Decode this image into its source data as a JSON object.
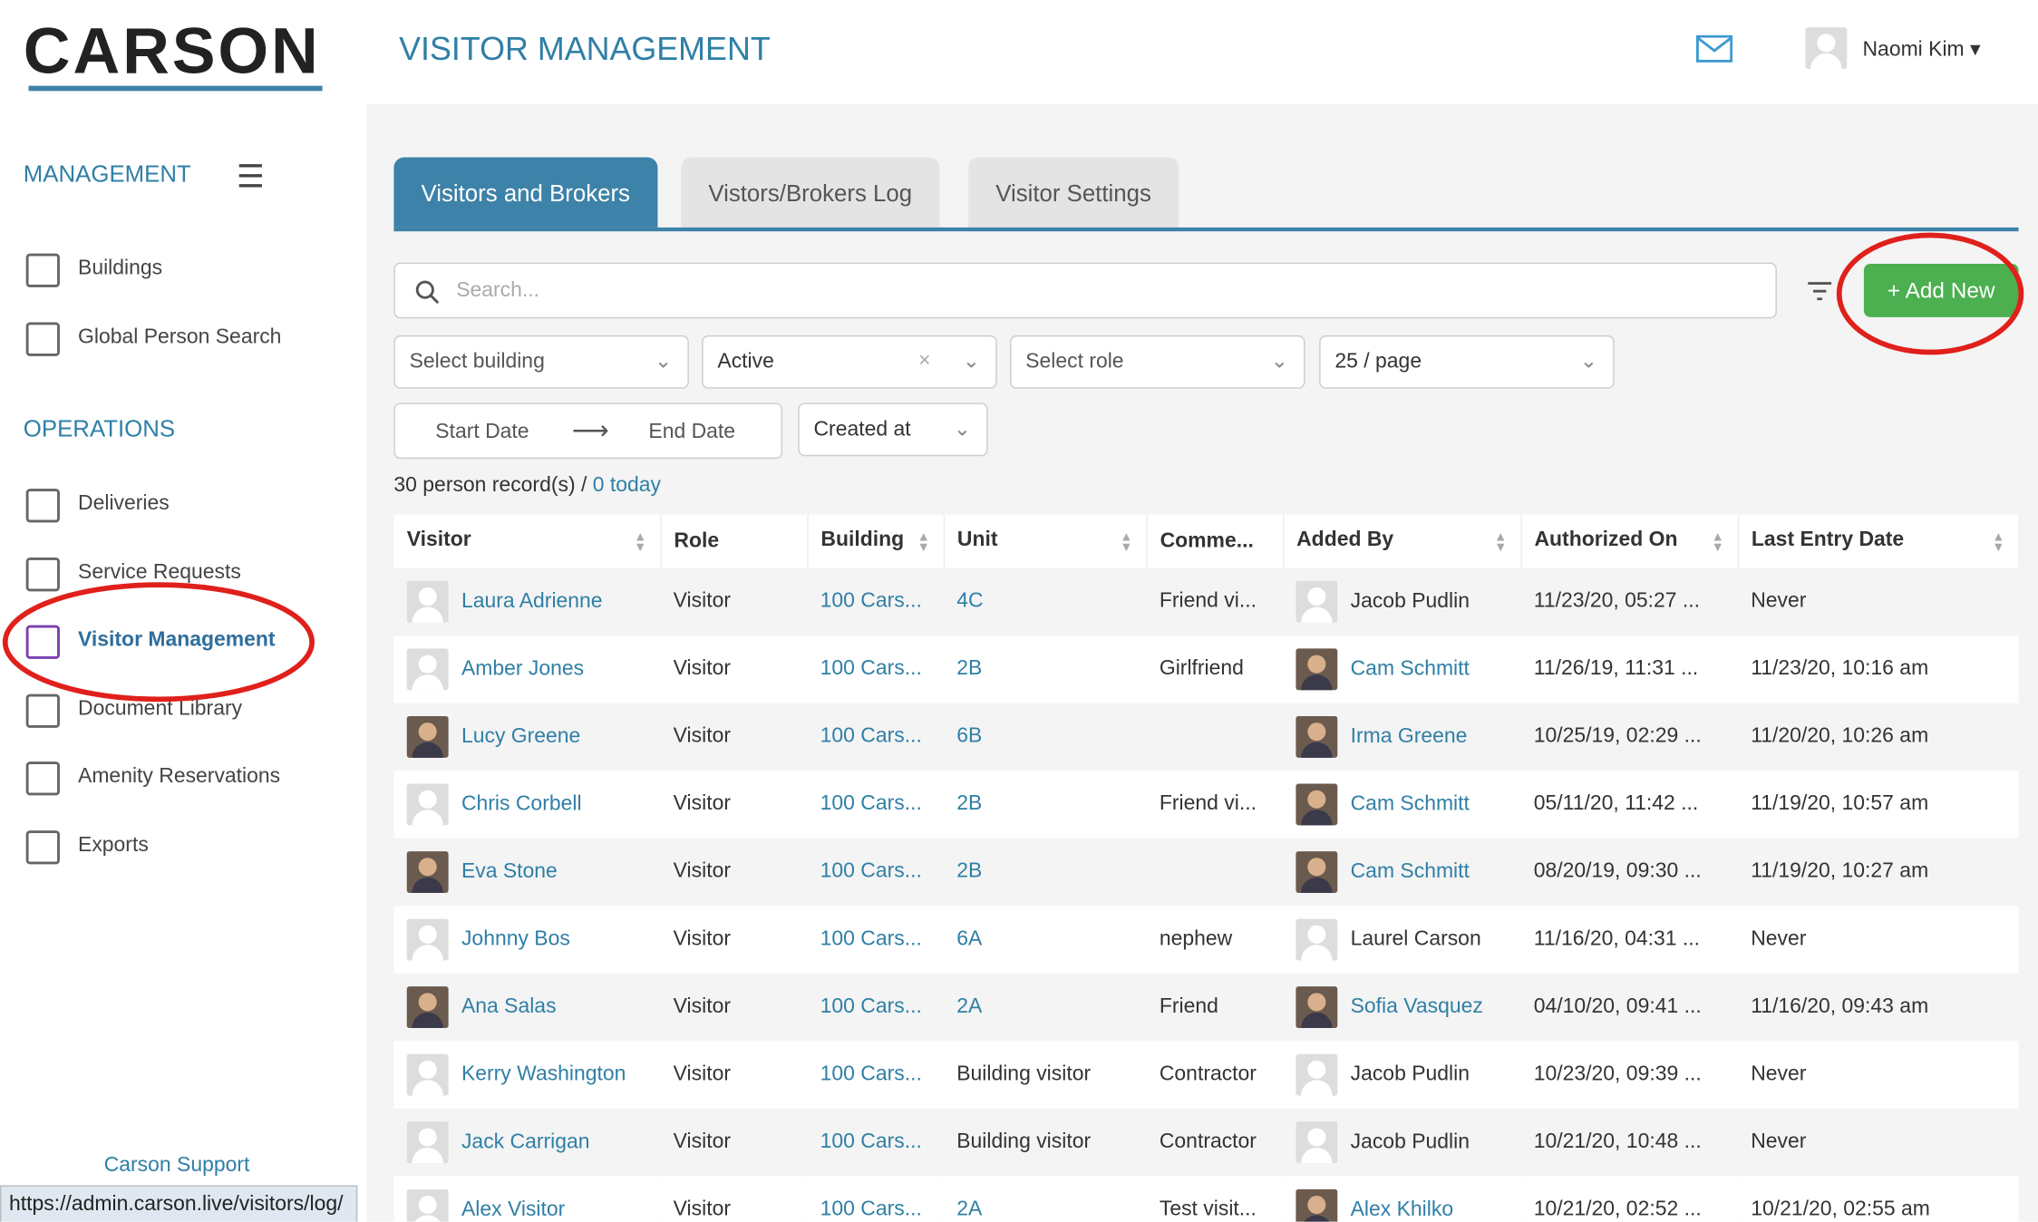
{
  "header": {
    "logo": "CARSON",
    "page_title": "VISITOR MANAGEMENT",
    "user": "Naomi Kim"
  },
  "sidebar": {
    "sections": [
      {
        "title": "MANAGEMENT",
        "items": [
          "Buildings",
          "Global Person Search"
        ]
      },
      {
        "title": "OPERATIONS",
        "items": [
          "Deliveries",
          "Service Requests",
          "Visitor Management",
          "Document Library",
          "Amenity Reservations",
          "Exports"
        ]
      }
    ],
    "active_item": "Visitor Management",
    "support": "Carson Support"
  },
  "status_bar": "https://admin.carson.live/visitors/log/",
  "tabs": [
    "Visitors and Brokers",
    "Vistors/Brokers Log",
    "Visitor Settings"
  ],
  "search_placeholder": "Search...",
  "add_button": "+ Add New",
  "filters": {
    "building": "Select building",
    "status": "Active",
    "role": "Select role",
    "page_size": "25 / page",
    "start_date": "Start Date",
    "end_date": "End Date",
    "sort": "Created at"
  },
  "records": {
    "count": "30 person record(s) /",
    "today": "0 today"
  },
  "table": {
    "columns": [
      "Visitor",
      "Role",
      "Building",
      "Unit",
      "Comme...",
      "Added By",
      "Authorized On",
      "Last Entry Date"
    ],
    "rows": [
      [
        "Laura Adrienne",
        "Visitor",
        "100 Cars...",
        "4C",
        "Friend vi...",
        "Jacob Pudlin",
        "11/23/20, 05:27 ...",
        "Never"
      ],
      [
        "Amber Jones",
        "Visitor",
        "100 Cars...",
        "2B",
        "Girlfriend",
        "Cam Schmitt",
        "11/26/19, 11:31 ...",
        "11/23/20, 10:16 am"
      ],
      [
        "Lucy Greene",
        "Visitor",
        "100 Cars...",
        "6B",
        "",
        "Irma Greene",
        "10/25/19, 02:29 ...",
        "11/20/20, 10:26 am"
      ],
      [
        "Chris Corbell",
        "Visitor",
        "100 Cars...",
        "2B",
        "Friend vi...",
        "Cam Schmitt",
        "05/11/20, 11:42 ...",
        "11/19/20, 10:57 am"
      ],
      [
        "Eva Stone",
        "Visitor",
        "100 Cars...",
        "2B",
        "",
        "Cam Schmitt",
        "08/20/19, 09:30 ...",
        "11/19/20, 10:27 am"
      ],
      [
        "Johnny Bos",
        "Visitor",
        "100 Cars...",
        "6A",
        "nephew",
        "Laurel Carson",
        "11/16/20, 04:31 ...",
        "Never"
      ],
      [
        "Ana Salas",
        "Visitor",
        "100 Cars...",
        "2A",
        "Friend",
        "Sofia Vasquez",
        "04/10/20, 09:41 ...",
        "11/16/20, 09:43 am"
      ],
      [
        "Kerry Washington",
        "Visitor",
        "100 Cars...",
        "Building visitor",
        "Contractor",
        "Jacob Pudlin",
        "10/23/20, 09:39 ...",
        "Never"
      ],
      [
        "Jack Carrigan",
        "Visitor",
        "100 Cars...",
        "Building visitor",
        "Contractor",
        "Jacob Pudlin",
        "10/21/20, 10:48 ...",
        "Never"
      ],
      [
        "Alex Visitor",
        "Visitor",
        "100 Cars...",
        "2A",
        "Test visit...",
        "Alex Khilko",
        "10/21/20, 02:52 ...",
        "10/21/20, 02:55 am"
      ]
    ],
    "visitor_photo": [
      false,
      false,
      true,
      false,
      true,
      false,
      true,
      false,
      false,
      false
    ],
    "added_by_linked": [
      false,
      true,
      true,
      true,
      true,
      false,
      true,
      false,
      false,
      true
    ]
  }
}
